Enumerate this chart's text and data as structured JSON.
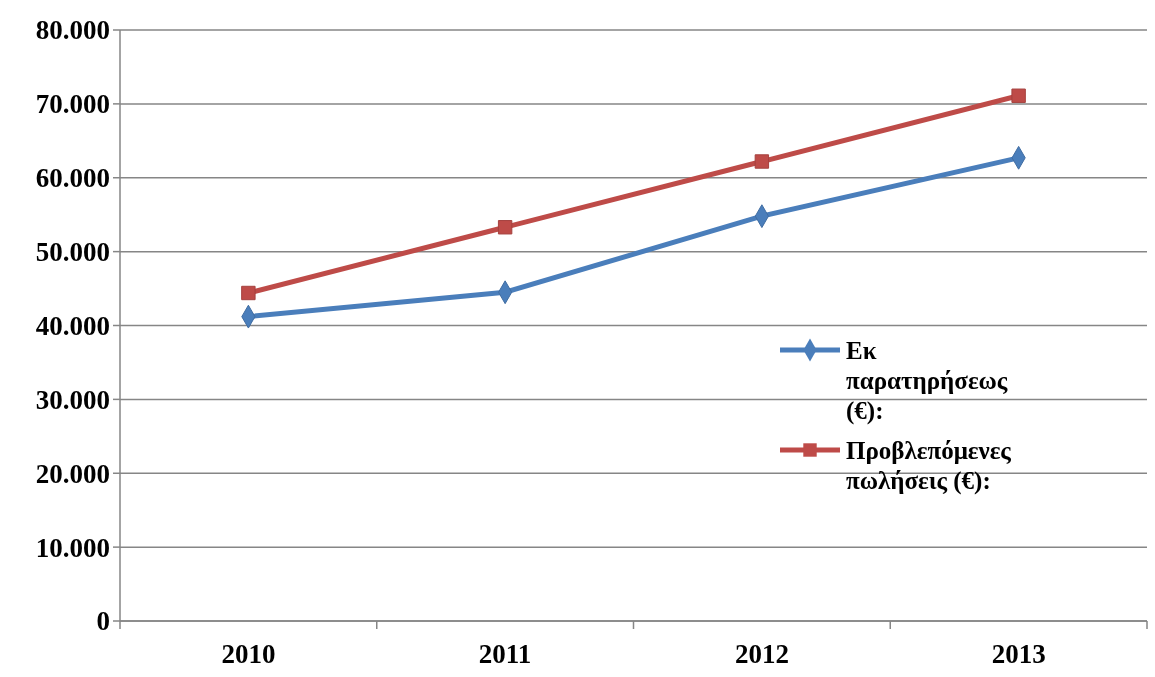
{
  "chart_data": {
    "type": "line",
    "categories": [
      "2010",
      "2011",
      "2012",
      "2013"
    ],
    "series": [
      {
        "name": "Εκ παρατηρήσεως (€):",
        "color": "#4a7ebb",
        "marker": "diamond",
        "values": [
          41200,
          44500,
          54800,
          62700
        ]
      },
      {
        "name": "Προβλεπόμενες πωλήσεις (€):",
        "color": "#be4b48",
        "marker": "square",
        "values": [
          44400,
          53300,
          62200,
          71100
        ]
      }
    ],
    "ylim": [
      0,
      80000
    ],
    "yticks": [
      {
        "value": 0,
        "label": "0"
      },
      {
        "value": 10000,
        "label": "10.000"
      },
      {
        "value": 20000,
        "label": "20.000"
      },
      {
        "value": 30000,
        "label": "30.000"
      },
      {
        "value": 40000,
        "label": "40.000"
      },
      {
        "value": 50000,
        "label": "50.000"
      },
      {
        "value": 60000,
        "label": "60.000"
      },
      {
        "value": 70000,
        "label": "70.000"
      },
      {
        "value": 80000,
        "label": "80.000"
      }
    ],
    "grid": "y",
    "legend": "right",
    "line_style": "solid"
  }
}
